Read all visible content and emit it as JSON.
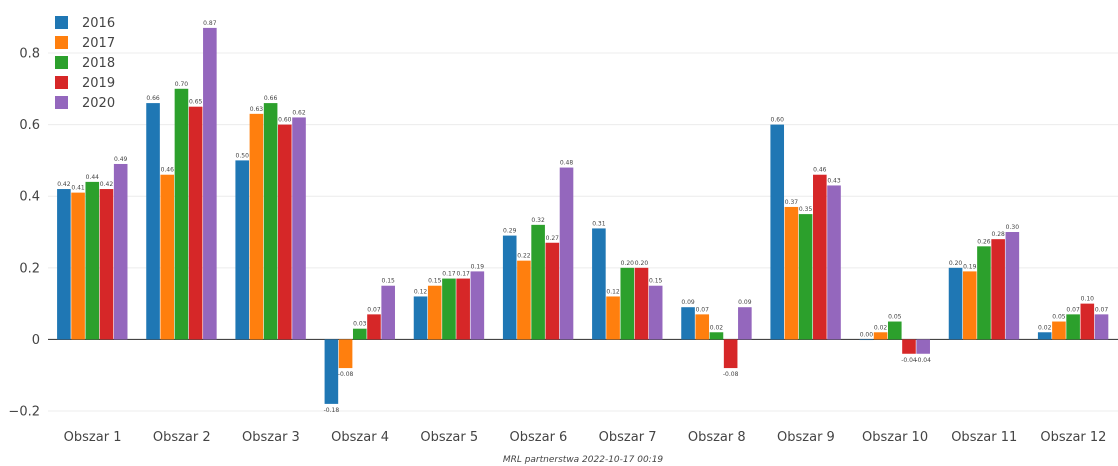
{
  "chart_data": {
    "type": "bar",
    "categories": [
      "Obszar 1",
      "Obszar 2",
      "Obszar 3",
      "Obszar 4",
      "Obszar 5",
      "Obszar 6",
      "Obszar 7",
      "Obszar 8",
      "Obszar 9",
      "Obszar 10",
      "Obszar 11",
      "Obszar 12"
    ],
    "series": [
      {
        "name": "2016",
        "color": "#1f77b4",
        "values": [
          0.42,
          0.66,
          0.5,
          -0.18,
          0.12,
          0.29,
          0.31,
          0.09,
          0.6,
          0.0,
          0.2,
          0.02
        ],
        "labels": [
          "0.42",
          "0.66",
          "0.50",
          "-0.18",
          "0.12",
          "0.29",
          "0.31",
          "0.09",
          "0.60",
          "0.00",
          "0.20",
          "0.02"
        ]
      },
      {
        "name": "2017",
        "color": "#ff7f0e",
        "values": [
          0.41,
          0.46,
          0.63,
          -0.08,
          0.15,
          0.22,
          0.12,
          0.07,
          0.37,
          0.02,
          0.19,
          0.05
        ],
        "labels": [
          "0.41",
          "0.46",
          "0.63",
          "-0.08",
          "0.15",
          "0.22",
          "0.12",
          "0.07",
          "0.37",
          "0.02",
          "0.19",
          "0.05"
        ]
      },
      {
        "name": "2018",
        "color": "#2ca02c",
        "values": [
          0.44,
          0.7,
          0.66,
          0.03,
          0.17,
          0.32,
          0.2,
          0.02,
          0.35,
          0.05,
          0.26,
          0.07
        ],
        "labels": [
          "0.44",
          "0.70",
          "0.66",
          "0.03",
          "0.17",
          "0.32",
          "0.20",
          "0.02",
          "0.35",
          "0.05",
          "0.26",
          "0.07"
        ]
      },
      {
        "name": "2019",
        "color": "#d62728",
        "values": [
          0.42,
          0.65,
          0.6,
          0.07,
          0.17,
          0.27,
          0.2,
          -0.08,
          0.46,
          -0.04,
          0.28,
          0.1
        ],
        "labels": [
          "0.42",
          "0.65",
          "0.60",
          "0.07",
          "0.17",
          "0.27",
          "0.20",
          "-0.08",
          "0.46",
          "-0.04",
          "0.28",
          "0.10"
        ]
      },
      {
        "name": "2020",
        "color": "#9467bd",
        "values": [
          0.49,
          0.87,
          0.62,
          0.15,
          0.19,
          0.48,
          0.15,
          0.09,
          0.43,
          -0.04,
          0.3,
          0.07
        ],
        "labels": [
          "0.49",
          "0.87",
          "0.62",
          "0.15",
          "0.19",
          "0.48",
          "0.15",
          "0.09",
          "0.43",
          "-0.04",
          "0.30",
          "0.07"
        ]
      }
    ],
    "yticks": [
      -0.2,
      0,
      0.2,
      0.4,
      0.6,
      0.8
    ],
    "ytick_labels": [
      "−0.2",
      "0",
      "0.2",
      "0.4",
      "0.6",
      "0.8"
    ],
    "ylim": [
      -0.225,
      0.92
    ],
    "grid": true,
    "legend_position": "top-left",
    "footer": "MRL partnerstwa 2022-10-17 00:19"
  }
}
